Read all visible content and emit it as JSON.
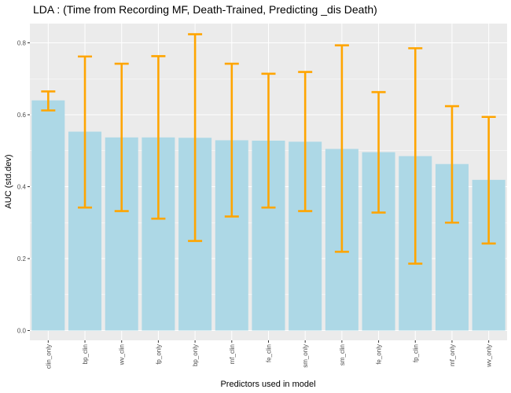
{
  "chart_data": {
    "type": "bar",
    "title": "LDA : (Time from Recording MF, Death-Trained, Predicting _dis Death)",
    "xlabel": "Predictors used in model",
    "ylabel": "AUC (std.dev)",
    "ylim": [
      0,
      0.86
    ],
    "yticks": [
      "0.0",
      "0.2",
      "0.4",
      "0.6",
      "0.8"
    ],
    "categories": [
      "clin_only",
      "bp_clin",
      "wv_clin",
      "fp_only",
      "bp_only",
      "mf_clin",
      "fe_clin",
      "sm_only",
      "sm_clin",
      "fe_only",
      "fp_clin",
      "mf_only",
      "wv_only"
    ],
    "values": [
      0.64,
      0.553,
      0.537,
      0.537,
      0.536,
      0.529,
      0.528,
      0.525,
      0.505,
      0.496,
      0.485,
      0.463,
      0.419
    ],
    "error_low": [
      0.612,
      0.342,
      0.332,
      0.311,
      0.249,
      0.317,
      0.342,
      0.332,
      0.219,
      0.328,
      0.186,
      0.3,
      0.242
    ],
    "error_high": [
      0.665,
      0.762,
      0.742,
      0.763,
      0.824,
      0.742,
      0.714,
      0.719,
      0.793,
      0.663,
      0.785,
      0.624,
      0.594
    ],
    "grid": true,
    "colors": {
      "bar": "#add8e6",
      "error_bar": "#ffa500",
      "panel_background": "#ebebeb",
      "grid_line": "#ffffff"
    }
  }
}
